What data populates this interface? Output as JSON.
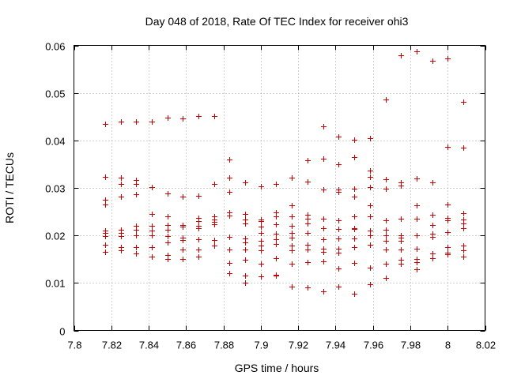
{
  "chart_data": {
    "type": "scatter",
    "title": "Day 048 of 2018, Rate Of TEC Index for receiver ohi3",
    "xlabel": "GPS time / hours",
    "ylabel": "ROTI / TECUs",
    "xlim": [
      7.8,
      8.02
    ],
    "ylim": [
      0,
      0.06
    ],
    "xticks": [
      "7.8",
      "7.82",
      "7.84",
      "7.86",
      "7.88",
      "7.9",
      "7.92",
      "7.94",
      "7.96",
      "7.98",
      "8",
      "8.02"
    ],
    "yticks": [
      "0",
      "0.01",
      "0.02",
      "0.03",
      "0.04",
      "0.05",
      "0.06"
    ],
    "grid": true,
    "marker": "plus",
    "color": "#cc0000",
    "series": [
      {
        "name": "ROTI",
        "points": [
          [
            7.8167,
            0.0435
          ],
          [
            7.8167,
            0.0323
          ],
          [
            7.8167,
            0.0275
          ],
          [
            7.8167,
            0.0265
          ],
          [
            7.8167,
            0.021
          ],
          [
            7.8167,
            0.0205
          ],
          [
            7.8167,
            0.0198
          ],
          [
            7.8167,
            0.018
          ],
          [
            7.8167,
            0.0165
          ],
          [
            7.825,
            0.044
          ],
          [
            7.825,
            0.0322
          ],
          [
            7.825,
            0.0308
          ],
          [
            7.825,
            0.0282
          ],
          [
            7.825,
            0.0212
          ],
          [
            7.825,
            0.0205
          ],
          [
            7.825,
            0.0199
          ],
          [
            7.825,
            0.0176
          ],
          [
            7.825,
            0.0168
          ],
          [
            7.8333,
            0.044
          ],
          [
            7.8333,
            0.0316
          ],
          [
            7.8333,
            0.0309
          ],
          [
            7.8333,
            0.0287
          ],
          [
            7.8333,
            0.022
          ],
          [
            7.8333,
            0.0212
          ],
          [
            7.8333,
            0.02
          ],
          [
            7.8333,
            0.0175
          ],
          [
            7.8333,
            0.0162
          ],
          [
            7.8417,
            0.044
          ],
          [
            7.8417,
            0.0301
          ],
          [
            7.8417,
            0.0245
          ],
          [
            7.8417,
            0.0221
          ],
          [
            7.8417,
            0.0211
          ],
          [
            7.8417,
            0.02
          ],
          [
            7.8417,
            0.0175
          ],
          [
            7.8417,
            0.0155
          ],
          [
            7.85,
            0.0448
          ],
          [
            7.85,
            0.0288
          ],
          [
            7.85,
            0.024
          ],
          [
            7.85,
            0.0222
          ],
          [
            7.85,
            0.0212
          ],
          [
            7.85,
            0.0198
          ],
          [
            7.85,
            0.0186
          ],
          [
            7.85,
            0.0159
          ],
          [
            7.85,
            0.015
          ],
          [
            7.8583,
            0.0446
          ],
          [
            7.8583,
            0.0282
          ],
          [
            7.8583,
            0.0222
          ],
          [
            7.8583,
            0.0219
          ],
          [
            7.8583,
            0.0196
          ],
          [
            7.8583,
            0.019
          ],
          [
            7.8583,
            0.017
          ],
          [
            7.8583,
            0.015
          ],
          [
            7.8667,
            0.0451
          ],
          [
            7.8667,
            0.0284
          ],
          [
            7.8667,
            0.0237
          ],
          [
            7.8667,
            0.0231
          ],
          [
            7.8667,
            0.0221
          ],
          [
            7.8667,
            0.0216
          ],
          [
            7.8667,
            0.0192
          ],
          [
            7.8667,
            0.0171
          ],
          [
            7.8667,
            0.0156
          ],
          [
            7.875,
            0.0451
          ],
          [
            7.875,
            0.0309
          ],
          [
            7.875,
            0.024
          ],
          [
            7.875,
            0.0233
          ],
          [
            7.875,
            0.0228
          ],
          [
            7.875,
            0.0223
          ],
          [
            7.875,
            0.019
          ],
          [
            7.875,
            0.0179
          ],
          [
            7.8833,
            0.036
          ],
          [
            7.8833,
            0.0322
          ],
          [
            7.8833,
            0.0292
          ],
          [
            7.8833,
            0.0248
          ],
          [
            7.8833,
            0.0242
          ],
          [
            7.8833,
            0.0197
          ],
          [
            7.8833,
            0.0171
          ],
          [
            7.8833,
            0.0142
          ],
          [
            7.8833,
            0.012
          ],
          [
            7.8917,
            0.0311
          ],
          [
            7.8917,
            0.0245
          ],
          [
            7.8917,
            0.0234
          ],
          [
            7.8917,
            0.0226
          ],
          [
            7.8917,
            0.0193
          ],
          [
            7.8917,
            0.0185
          ],
          [
            7.8917,
            0.017
          ],
          [
            7.8917,
            0.0149
          ],
          [
            7.8917,
            0.0115
          ],
          [
            7.8917,
            0.01
          ],
          [
            7.9,
            0.0303
          ],
          [
            7.9,
            0.0234
          ],
          [
            7.9,
            0.0231
          ],
          [
            7.9,
            0.0219
          ],
          [
            7.9,
            0.0205
          ],
          [
            7.9,
            0.0189
          ],
          [
            7.9,
            0.0178
          ],
          [
            7.9,
            0.0168
          ],
          [
            7.9,
            0.0141
          ],
          [
            7.9,
            0.0114
          ],
          [
            7.9083,
            0.0308
          ],
          [
            7.9083,
            0.0249
          ],
          [
            7.9083,
            0.024
          ],
          [
            7.9083,
            0.0224
          ],
          [
            7.9083,
            0.0203
          ],
          [
            7.9083,
            0.0192
          ],
          [
            7.9083,
            0.0182
          ],
          [
            7.9083,
            0.0152
          ],
          [
            7.9083,
            0.0118
          ],
          [
            7.9083,
            0.0115
          ],
          [
            7.9167,
            0.0322
          ],
          [
            7.9167,
            0.0264
          ],
          [
            7.9167,
            0.024
          ],
          [
            7.9167,
            0.022
          ],
          [
            7.9167,
            0.0205
          ],
          [
            7.9167,
            0.0195
          ],
          [
            7.9167,
            0.0178
          ],
          [
            7.9167,
            0.0168
          ],
          [
            7.9167,
            0.014
          ],
          [
            7.9167,
            0.0093
          ],
          [
            7.925,
            0.0358
          ],
          [
            7.925,
            0.0313
          ],
          [
            7.925,
            0.0243
          ],
          [
            7.925,
            0.0235
          ],
          [
            7.925,
            0.0225
          ],
          [
            7.925,
            0.0205
          ],
          [
            7.925,
            0.018
          ],
          [
            7.925,
            0.017
          ],
          [
            7.925,
            0.0143
          ],
          [
            7.925,
            0.009
          ],
          [
            7.9333,
            0.0429
          ],
          [
            7.9333,
            0.0362
          ],
          [
            7.9333,
            0.0296
          ],
          [
            7.9333,
            0.0235
          ],
          [
            7.9333,
            0.0215
          ],
          [
            7.9333,
            0.0192
          ],
          [
            7.9333,
            0.0172
          ],
          [
            7.9333,
            0.0165
          ],
          [
            7.9333,
            0.0145
          ],
          [
            7.9333,
            0.0082
          ],
          [
            7.9417,
            0.0408
          ],
          [
            7.9417,
            0.035
          ],
          [
            7.9417,
            0.0296
          ],
          [
            7.9417,
            0.0292
          ],
          [
            7.9417,
            0.0232
          ],
          [
            7.9417,
            0.0213
          ],
          [
            7.9417,
            0.0193
          ],
          [
            7.9417,
            0.0172
          ],
          [
            7.9417,
            0.0163
          ],
          [
            7.9417,
            0.013
          ],
          [
            7.9417,
            0.0092
          ],
          [
            7.95,
            0.0402
          ],
          [
            7.95,
            0.0365
          ],
          [
            7.95,
            0.0299
          ],
          [
            7.95,
            0.0282
          ],
          [
            7.95,
            0.024
          ],
          [
            7.95,
            0.0215
          ],
          [
            7.95,
            0.0213
          ],
          [
            7.95,
            0.0193
          ],
          [
            7.95,
            0.0175
          ],
          [
            7.95,
            0.0142
          ],
          [
            7.95,
            0.0078
          ],
          [
            7.9583,
            0.0405
          ],
          [
            7.9583,
            0.0336
          ],
          [
            7.9583,
            0.0323
          ],
          [
            7.9583,
            0.0301
          ],
          [
            7.9583,
            0.0263
          ],
          [
            7.9583,
            0.024
          ],
          [
            7.9583,
            0.021
          ],
          [
            7.9583,
            0.02
          ],
          [
            7.9583,
            0.018
          ],
          [
            7.9583,
            0.0132
          ],
          [
            7.9583,
            0.0098
          ],
          [
            7.9667,
            0.0486
          ],
          [
            7.9667,
            0.0318
          ],
          [
            7.9667,
            0.0299
          ],
          [
            7.9667,
            0.0232
          ],
          [
            7.9667,
            0.0212
          ],
          [
            7.9667,
            0.02
          ],
          [
            7.9667,
            0.0189
          ],
          [
            7.9667,
            0.017
          ],
          [
            7.9667,
            0.014
          ],
          [
            7.9667,
            0.011
          ],
          [
            7.975,
            0.0579
          ],
          [
            7.975,
            0.0311
          ],
          [
            7.975,
            0.0305
          ],
          [
            7.975,
            0.0235
          ],
          [
            7.975,
            0.02
          ],
          [
            7.975,
            0.0195
          ],
          [
            7.975,
            0.0189
          ],
          [
            7.975,
            0.017
          ],
          [
            7.975,
            0.0148
          ],
          [
            7.975,
            0.0141
          ],
          [
            7.9833,
            0.0588
          ],
          [
            7.9833,
            0.032
          ],
          [
            7.9833,
            0.0263
          ],
          [
            7.9833,
            0.0235
          ],
          [
            7.9833,
            0.02
          ],
          [
            7.9833,
            0.0172
          ],
          [
            7.9833,
            0.015
          ],
          [
            7.9833,
            0.0143
          ],
          [
            7.9833,
            0.0128
          ],
          [
            7.9917,
            0.0567
          ],
          [
            7.9917,
            0.0312
          ],
          [
            7.9917,
            0.0243
          ],
          [
            7.9917,
            0.0222
          ],
          [
            7.9917,
            0.0203
          ],
          [
            7.9917,
            0.0197
          ],
          [
            7.9917,
            0.0162
          ],
          [
            7.9917,
            0.0152
          ],
          [
            8.0,
            0.0572
          ],
          [
            8.0,
            0.0386
          ],
          [
            8.0,
            0.0265
          ],
          [
            8.0,
            0.0237
          ],
          [
            8.0,
            0.0232
          ],
          [
            8.0,
            0.0207
          ],
          [
            8.0,
            0.0175
          ],
          [
            8.0,
            0.0163
          ],
          [
            8.0,
            0.016
          ],
          [
            8.0083,
            0.0481
          ],
          [
            8.0083,
            0.0385
          ],
          [
            8.0083,
            0.0247
          ],
          [
            8.0083,
            0.0233
          ],
          [
            8.0083,
            0.0225
          ],
          [
            8.0083,
            0.0215
          ],
          [
            8.0083,
            0.0178
          ],
          [
            8.0083,
            0.0168
          ],
          [
            8.0083,
            0.0155
          ]
        ]
      }
    ]
  }
}
